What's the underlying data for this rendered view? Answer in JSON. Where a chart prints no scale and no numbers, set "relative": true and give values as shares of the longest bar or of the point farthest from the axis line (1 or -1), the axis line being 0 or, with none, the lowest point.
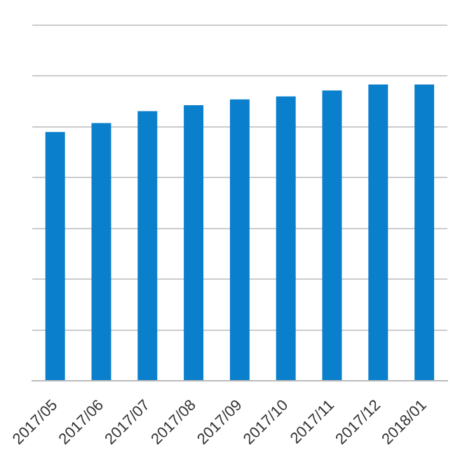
{
  "chart_data": {
    "type": "bar",
    "relative": true,
    "grid": "y",
    "legend": false,
    "categories": [
      "2017/05",
      "2017/06",
      "2017/07",
      "2017/08",
      "2017/09",
      "2017/10",
      "2017/11",
      "2017/12",
      "2018/01"
    ],
    "color": "#0a7fcb",
    "values": [
      0.84,
      0.87,
      0.91,
      0.93,
      0.95,
      0.96,
      0.98,
      1,
      1
    ]
  }
}
